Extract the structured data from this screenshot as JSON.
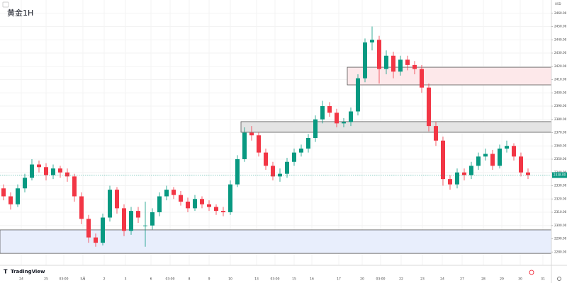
{
  "chart_data": {
    "type": "candlestick",
    "title": "黄金1H",
    "currency": "USD",
    "brand": "TradingView",
    "up_color": "#089981",
    "down_color": "#f23645",
    "ylim": [
      2270,
      2470
    ],
    "yticks": [
      {
        "value": 2280,
        "label": "2280.00"
      },
      {
        "value": 2290,
        "label": "2290.00"
      },
      {
        "value": 2300,
        "label": "2300.00"
      },
      {
        "value": 2310,
        "label": "2310.00"
      },
      {
        "value": 2320,
        "label": "2320.00"
      },
      {
        "value": 2330,
        "label": "2330.00"
      },
      {
        "value": 2340,
        "label": "2340.00"
      },
      {
        "value": 2350,
        "label": "2350.00"
      },
      {
        "value": 2360,
        "label": "2360.00"
      },
      {
        "value": 2370,
        "label": "2370.00"
      },
      {
        "value": 2380,
        "label": "2380.00"
      },
      {
        "value": 2390,
        "label": "2390.00"
      },
      {
        "value": 2400,
        "label": "2400.00"
      },
      {
        "value": 2410,
        "label": "2410.00"
      },
      {
        "value": 2420,
        "label": "2420.00"
      },
      {
        "value": 2430,
        "label": "2430.00"
      },
      {
        "value": 2440,
        "label": "2440.00"
      },
      {
        "value": 2450,
        "label": "2450.00"
      },
      {
        "value": 2460,
        "label": "2460.00"
      }
    ],
    "xticks": [
      {
        "value": 2.5,
        "label": "24"
      },
      {
        "value": 6,
        "label": "25"
      },
      {
        "value": 8.5,
        "label": "03:00"
      },
      {
        "value": 11.2,
        "label": "5月"
      },
      {
        "value": 14.2,
        "label": "2"
      },
      {
        "value": 17.2,
        "label": "3"
      },
      {
        "value": 20.8,
        "label": "6"
      },
      {
        "value": 23.5,
        "label": "03:00"
      },
      {
        "value": 26.2,
        "label": "8"
      },
      {
        "value": 29,
        "label": "9"
      },
      {
        "value": 32,
        "label": "10"
      },
      {
        "value": 35.7,
        "label": "13"
      },
      {
        "value": 38.3,
        "label": "03:00"
      },
      {
        "value": 41,
        "label": "15"
      },
      {
        "value": 43.5,
        "label": "16"
      },
      {
        "value": 47.3,
        "label": "17"
      },
      {
        "value": 50.6,
        "label": "20"
      },
      {
        "value": 53.2,
        "label": "03:00"
      },
      {
        "value": 56.1,
        "label": "22"
      },
      {
        "value": 59.1,
        "label": "23"
      },
      {
        "value": 61.9,
        "label": "24"
      },
      {
        "value": 64.7,
        "label": "27"
      },
      {
        "value": 67.7,
        "label": "28"
      },
      {
        "value": 70.3,
        "label": "29"
      },
      {
        "value": 72.9,
        "label": "30"
      },
      {
        "value": 76.1,
        "label": "31"
      }
    ],
    "price_label": "2338.00",
    "zones": [
      {
        "top": 2419.3,
        "bottom": 2406,
        "from": 48.5,
        "fill": "#fde8ea",
        "stroke": "#555"
      },
      {
        "top": 2378.3,
        "bottom": 2370.3,
        "from": 33.5,
        "fill": "#e4e4e4",
        "stroke": "#555"
      },
      {
        "top": 2296.7,
        "bottom": 2279,
        "from": -0.5,
        "fill": "#e8eefc",
        "stroke": "#555"
      }
    ],
    "ohlc": [
      [
        2328,
        2331,
        2319,
        2322
      ],
      [
        2322,
        2325,
        2312,
        2316
      ],
      [
        2316,
        2331,
        2314,
        2328
      ],
      [
        2328,
        2339,
        2325,
        2336
      ],
      [
        2336,
        2350,
        2334,
        2346
      ],
      [
        2346,
        2349,
        2340,
        2344
      ],
      [
        2344,
        2347,
        2334,
        2338
      ],
      [
        2338,
        2346,
        2335,
        2343
      ],
      [
        2343,
        2345,
        2336,
        2340
      ],
      [
        2340,
        2343,
        2333,
        2337
      ],
      [
        2337,
        2339,
        2318,
        2322
      ],
      [
        2322,
        2325,
        2301,
        2305
      ],
      [
        2305,
        2308,
        2287,
        2291
      ],
      [
        2291,
        2294,
        2284,
        2287
      ],
      [
        2287,
        2309,
        2285,
        2306
      ],
      [
        2306,
        2330,
        2303,
        2327
      ],
      [
        2327,
        2329,
        2309,
        2313
      ],
      [
        2313,
        2316,
        2292,
        2296
      ],
      [
        2296,
        2314,
        2293,
        2311
      ],
      [
        2311,
        2314,
        2302,
        2306
      ],
      [
        2300,
        2318,
        2284,
        2300
      ],
      [
        2300,
        2313,
        2297,
        2310
      ],
      [
        2310,
        2325,
        2307,
        2322
      ],
      [
        2322,
        2330,
        2319,
        2327
      ],
      [
        2327,
        2329,
        2320,
        2323
      ],
      [
        2323,
        2326,
        2315,
        2318
      ],
      [
        2318,
        2321,
        2310,
        2313
      ],
      [
        2313,
        2323,
        2311,
        2320
      ],
      [
        2320,
        2322,
        2313,
        2316
      ],
      [
        2316,
        2319,
        2311,
        2314
      ],
      [
        2314,
        2316,
        2308,
        2311
      ],
      [
        2311,
        2314,
        2307,
        2310
      ],
      [
        2310,
        2334,
        2308,
        2331
      ],
      [
        2331,
        2353,
        2329,
        2350
      ],
      [
        2350,
        2374,
        2348,
        2370
      ],
      [
        2370,
        2375,
        2364,
        2368
      ],
      [
        2368,
        2370,
        2352,
        2355
      ],
      [
        2355,
        2358,
        2342,
        2345
      ],
      [
        2345,
        2348,
        2334,
        2337
      ],
      [
        2337,
        2343,
        2333,
        2339
      ],
      [
        2339,
        2351,
        2336,
        2348
      ],
      [
        2348,
        2358,
        2345,
        2355
      ],
      [
        2355,
        2361,
        2352,
        2358
      ],
      [
        2358,
        2369,
        2355,
        2366
      ],
      [
        2366,
        2383,
        2363,
        2380
      ],
      [
        2380,
        2394,
        2377,
        2390
      ],
      [
        2390,
        2393,
        2382,
        2385
      ],
      [
        2385,
        2388,
        2374,
        2377
      ],
      [
        2377,
        2381,
        2374,
        2378
      ],
      [
        2378,
        2389,
        2375,
        2386
      ],
      [
        2386,
        2414,
        2383,
        2411
      ],
      [
        2411,
        2441,
        2408,
        2438
      ],
      [
        2438,
        2450,
        2432,
        2440
      ],
      [
        2440,
        2443,
        2407,
        2418
      ],
      [
        2418,
        2432,
        2414,
        2428
      ],
      [
        2428,
        2431,
        2411,
        2416
      ],
      [
        2416,
        2428,
        2413,
        2425
      ],
      [
        2425,
        2428,
        2417,
        2421
      ],
      [
        2421,
        2424,
        2414,
        2418
      ],
      [
        2418,
        2421,
        2400,
        2404
      ],
      [
        2404,
        2407,
        2371,
        2375
      ],
      [
        2375,
        2378,
        2360,
        2364
      ],
      [
        2364,
        2367,
        2330,
        2335
      ],
      [
        2335,
        2338,
        2327,
        2331
      ],
      [
        2331,
        2343,
        2328,
        2340
      ],
      [
        2340,
        2343,
        2334,
        2338
      ],
      [
        2338,
        2348,
        2335,
        2345
      ],
      [
        2345,
        2355,
        2342,
        2352
      ],
      [
        2352,
        2358,
        2349,
        2354
      ],
      [
        2354,
        2357,
        2342,
        2345
      ],
      [
        2345,
        2361,
        2343,
        2358
      ],
      [
        2358,
        2364,
        2355,
        2360
      ],
      [
        2360,
        2362,
        2349,
        2352
      ],
      [
        2352,
        2355,
        2337,
        2340
      ],
      [
        2340,
        2343,
        2335,
        2338
      ]
    ]
  }
}
